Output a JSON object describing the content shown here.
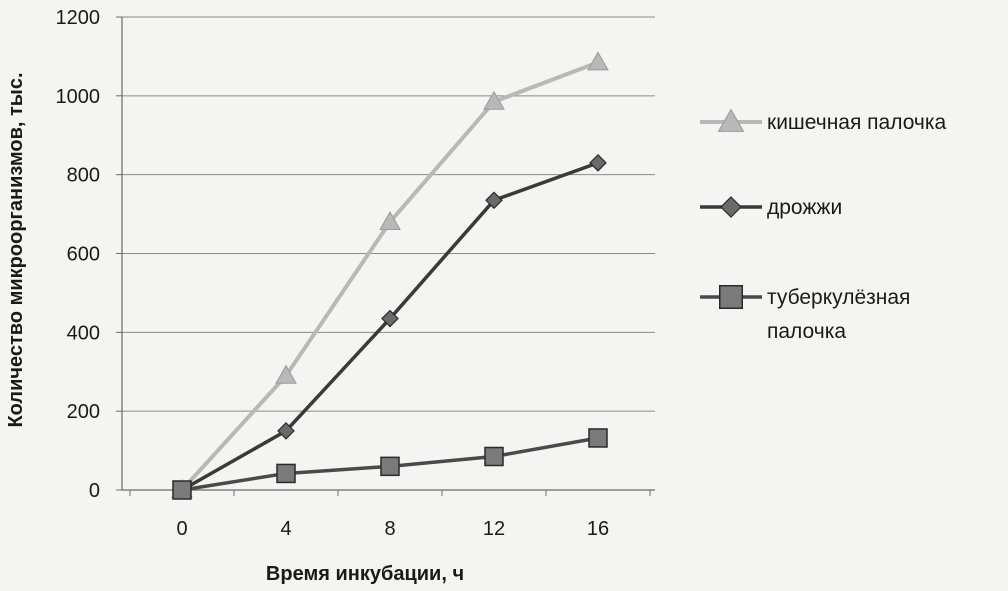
{
  "chart_data": {
    "type": "line",
    "xlabel": "Время инкубации, ч",
    "ylabel": "Количество микроорганизмов, тыс.",
    "x": [
      0,
      4,
      8,
      12,
      16
    ],
    "ylim": [
      0,
      1200
    ],
    "yticks": [
      0,
      200,
      400,
      600,
      800,
      1000,
      1200
    ],
    "grid": true,
    "legend_position": "right",
    "series": [
      {
        "name": "кишечная палочка",
        "values": [
          0,
          290,
          680,
          985,
          1085
        ],
        "color": "#b8b8b8",
        "marker": "triangle"
      },
      {
        "name": "дрожжи",
        "values": [
          0,
          150,
          435,
          735,
          830
        ],
        "color": "#3a3a3a",
        "marker": "diamond"
      },
      {
        "name": "туберкулёзная палочка",
        "values": [
          0,
          42,
          60,
          85,
          132
        ],
        "color": "#4a4a4a",
        "marker": "square"
      }
    ]
  }
}
